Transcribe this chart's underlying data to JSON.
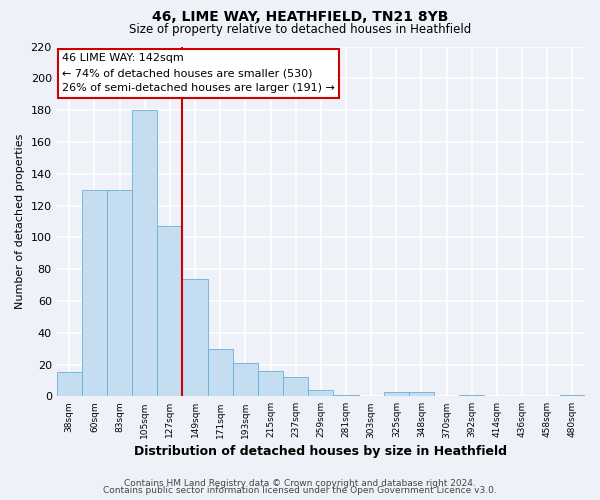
{
  "title": "46, LIME WAY, HEATHFIELD, TN21 8YB",
  "subtitle": "Size of property relative to detached houses in Heathfield",
  "xlabel": "Distribution of detached houses by size in Heathfield",
  "ylabel": "Number of detached properties",
  "bar_color": "#c5ddf0",
  "bar_edge_color": "#6aafd6",
  "ylim": [
    0,
    220
  ],
  "yticks": [
    0,
    20,
    40,
    60,
    80,
    100,
    120,
    140,
    160,
    180,
    200,
    220
  ],
  "vline_color": "#cc0000",
  "annotation_title": "46 LIME WAY: 142sqm",
  "annotation_line1": "← 74% of detached houses are smaller (530)",
  "annotation_line2": "26% of semi-detached houses are larger (191) →",
  "annotation_box_color": "#ffffff",
  "annotation_box_edge": "#cc0000",
  "footer1": "Contains HM Land Registry data © Crown copyright and database right 2024.",
  "footer2": "Contains public sector information licensed under the Open Government Licence v3.0.",
  "background_color": "#eef2f8",
  "grid_color": "#ffffff",
  "all_labels": [
    "38sqm",
    "60sqm",
    "83sqm",
    "105sqm",
    "127sqm",
    "149sqm",
    "171sqm",
    "193sqm",
    "215sqm",
    "237sqm",
    "259sqm",
    "281sqm",
    "303sqm",
    "325sqm",
    "348sqm",
    "370sqm",
    "392sqm",
    "414sqm",
    "436sqm",
    "458sqm",
    "480sqm"
  ],
  "all_values": [
    15,
    130,
    130,
    180,
    107,
    74,
    30,
    21,
    16,
    12,
    4,
    1,
    0,
    3,
    3,
    0,
    1,
    0,
    0,
    0,
    1
  ],
  "vline_idx": 4.5
}
